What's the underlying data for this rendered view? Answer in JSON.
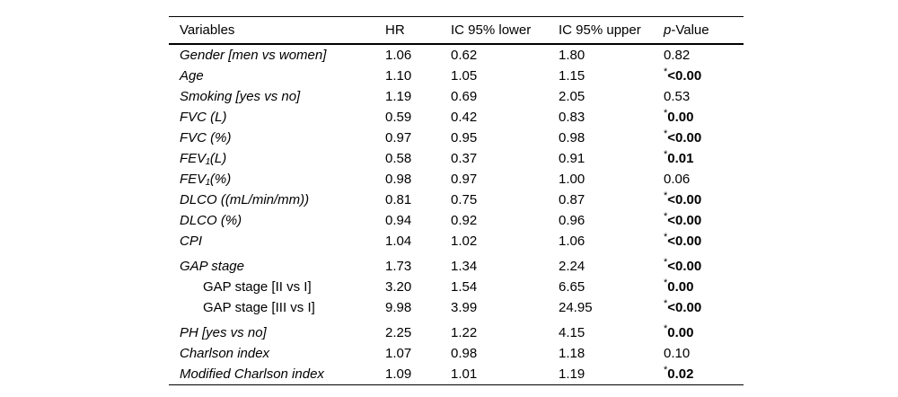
{
  "table": {
    "header": {
      "variables": "Variables",
      "hr": "HR",
      "ic_lower": "IC 95% lower",
      "ic_upper": "IC 95% upper",
      "p_italic": "p",
      "p_rest": "-Value"
    },
    "rows": [
      {
        "name": "Gender [men vs women]",
        "italic": true,
        "indent": false,
        "gap": false,
        "hr": "1.06",
        "lower": "0.62",
        "upper": "1.80",
        "p": "0.82",
        "star": false,
        "bold": false
      },
      {
        "name": "Age",
        "italic": true,
        "indent": false,
        "gap": false,
        "hr": "1.10",
        "lower": "1.05",
        "upper": "1.15",
        "p": "<0.00",
        "star": true,
        "bold": true
      },
      {
        "name": "Smoking [yes vs no]",
        "italic": true,
        "indent": false,
        "gap": false,
        "hr": "1.19",
        "lower": "0.69",
        "upper": "2.05",
        "p": "0.53",
        "star": false,
        "bold": false
      },
      {
        "name": "FVC (L)",
        "italic": true,
        "indent": false,
        "gap": false,
        "hr": "0.59",
        "lower": "0.42",
        "upper": "0.83",
        "p": "0.00",
        "star": true,
        "bold": true
      },
      {
        "name": "FVC (%)",
        "italic": true,
        "indent": false,
        "gap": false,
        "hr": "0.97",
        "lower": "0.95",
        "upper": "0.98",
        "p": "<0.00",
        "star": true,
        "bold": true
      },
      {
        "name": "FEV₁(L)",
        "italic": true,
        "indent": false,
        "gap": false,
        "hr": "0.58",
        "lower": "0.37",
        "upper": "0.91",
        "p": "0.01",
        "star": true,
        "bold": true
      },
      {
        "name": "FEV₁(%)",
        "italic": true,
        "indent": false,
        "gap": false,
        "hr": "0.98",
        "lower": "0.97",
        "upper": "1.00",
        "p": "0.06",
        "star": false,
        "bold": false
      },
      {
        "name": "DLCO ((mL/min/mm))",
        "italic": true,
        "indent": false,
        "gap": false,
        "hr": "0.81",
        "lower": "0.75",
        "upper": "0.87",
        "p": "<0.00",
        "star": true,
        "bold": true
      },
      {
        "name": "DLCO (%)",
        "italic": true,
        "indent": false,
        "gap": false,
        "hr": "0.94",
        "lower": "0.92",
        "upper": "0.96",
        "p": "<0.00",
        "star": true,
        "bold": true
      },
      {
        "name": "CPI",
        "italic": true,
        "indent": false,
        "gap": false,
        "hr": "1.04",
        "lower": "1.02",
        "upper": "1.06",
        "p": "<0.00",
        "star": true,
        "bold": true
      },
      {
        "name": "GAP stage",
        "italic": true,
        "indent": false,
        "gap": true,
        "hr": "1.73",
        "lower": "1.34",
        "upper": "2.24",
        "p": "<0.00",
        "star": true,
        "bold": true
      },
      {
        "name": "GAP stage [II vs I]",
        "italic": false,
        "indent": true,
        "gap": false,
        "hr": "3.20",
        "lower": "1.54",
        "upper": "6.65",
        "p": "0.00",
        "star": true,
        "bold": true
      },
      {
        "name": "GAP stage [III vs I]",
        "italic": false,
        "indent": true,
        "gap": false,
        "hr": "9.98",
        "lower": "3.99",
        "upper": "24.95",
        "p": "<0.00",
        "star": true,
        "bold": true
      },
      {
        "name": "PH [yes vs no]",
        "italic": true,
        "indent": false,
        "gap": true,
        "hr": "2.25",
        "lower": "1.22",
        "upper": "4.15",
        "p": "0.00",
        "star": true,
        "bold": true
      },
      {
        "name": "Charlson index",
        "italic": true,
        "indent": false,
        "gap": false,
        "hr": "1.07",
        "lower": "0.98",
        "upper": "1.18",
        "p": "0.10",
        "star": false,
        "bold": false
      },
      {
        "name": "Modified Charlson index",
        "italic": true,
        "indent": false,
        "gap": false,
        "hr": "1.09",
        "lower": "1.01",
        "upper": "1.19",
        "p": "0.02",
        "star": true,
        "bold": true
      }
    ]
  }
}
